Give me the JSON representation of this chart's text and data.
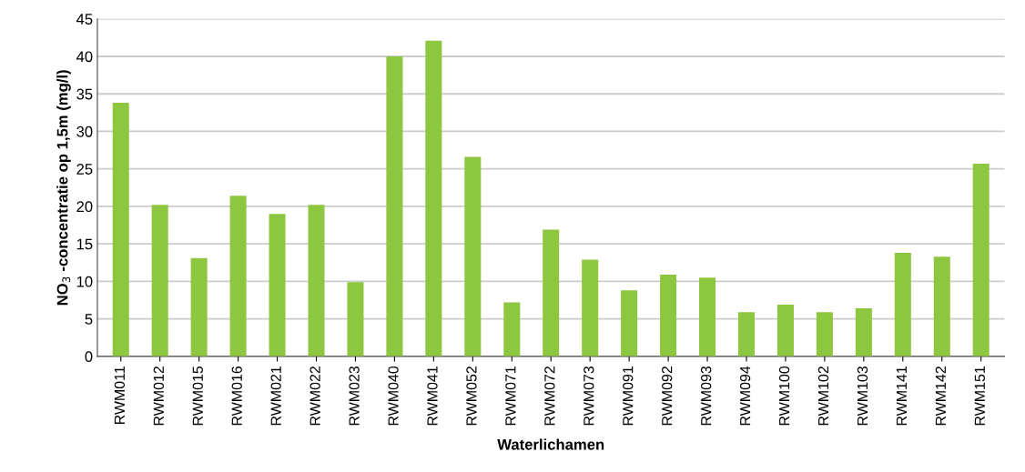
{
  "chart_data": {
    "type": "bar",
    "xlabel": "Waterlichamen",
    "ylabel": "NO$_{3}$ -concentratie op 1,5m (mg/l)",
    "categories": [
      "RWM011",
      "RWM012",
      "RWM015",
      "RWM016",
      "RWM021",
      "RWM022",
      "RWM023",
      "RWM040",
      "RWM041",
      "RWM052",
      "RWM071",
      "RWM072",
      "RWM073",
      "RWM091",
      "RWM092",
      "RWM093",
      "RWM094",
      "RWM100",
      "RWM102",
      "RWM103",
      "RWM141",
      "RWM142",
      "RWM151"
    ],
    "values": [
      33.8,
      20.2,
      13.1,
      21.4,
      19.0,
      20.2,
      9.9,
      40.0,
      42.1,
      26.6,
      7.2,
      16.9,
      12.9,
      8.8,
      10.9,
      10.5,
      5.9,
      6.9,
      5.9,
      6.4,
      13.8,
      13.3,
      25.7
    ],
    "color": "#8dc63f",
    "ylim": [
      0,
      45
    ],
    "yticks": [
      0,
      5,
      10,
      15,
      20,
      25,
      30,
      35,
      40,
      45
    ],
    "grid": "y",
    "legend": false
  }
}
